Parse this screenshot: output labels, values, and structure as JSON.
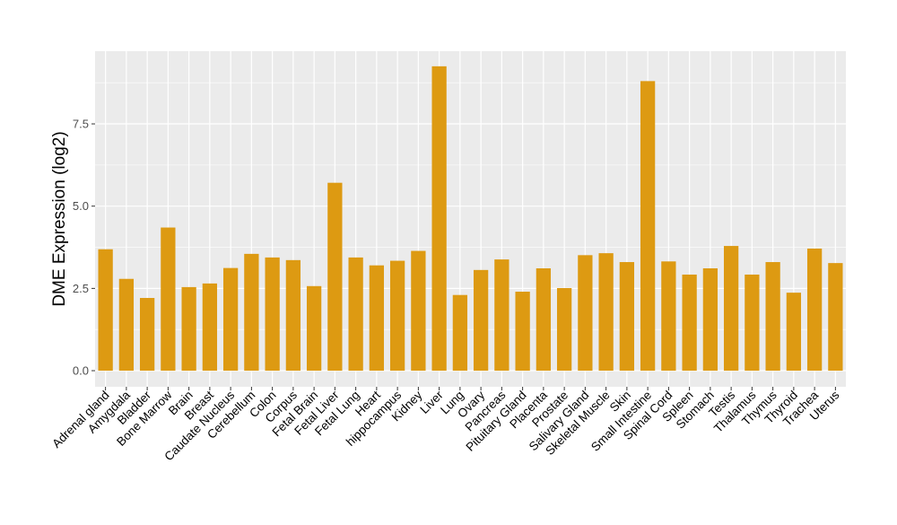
{
  "chart_data": {
    "type": "bar",
    "title": "",
    "xlabel": "",
    "ylabel": "DME Expression (log2)",
    "ylim": [
      -0.49,
      9.71
    ],
    "yticks": [
      0,
      2.5,
      5,
      7.5
    ],
    "ytick_labels": [
      "0.0",
      "2.5",
      "5.0",
      "7.5"
    ],
    "grid": true,
    "bar_color": "#DD9A12",
    "panel_color": "#EBEBEB",
    "categories": [
      "Adrenal gland",
      "Amygdala",
      "Bladder",
      "Bone Marrow",
      "Brain",
      "Breast",
      "Caudate Nucleus",
      "Cerebellum",
      "Colon",
      "Corpus",
      "Fetal Brain",
      "Fetal Liver",
      "Fetal Lung",
      "Heart",
      "hippocampus",
      "Kidney",
      "Liver",
      "Lung",
      "Ovary",
      "Pancreas",
      "Pituitary Gland",
      "Placenta",
      "Prostate",
      "Salivary Gland",
      "Skeletal Muscle",
      "Skin",
      "Small Intestine",
      "Spinal Cord",
      "Spleen",
      "Stomach",
      "Testis",
      "Thalamus",
      "Thymus",
      "Thyroid",
      "Trachea",
      "Uterus"
    ],
    "values": [
      3.69,
      2.79,
      2.21,
      4.35,
      2.54,
      2.65,
      3.12,
      3.55,
      3.44,
      3.36,
      2.57,
      5.71,
      3.44,
      3.2,
      3.34,
      3.64,
      9.25,
      2.3,
      3.06,
      3.38,
      2.4,
      3.11,
      2.51,
      3.51,
      3.57,
      3.3,
      8.8,
      3.32,
      2.92,
      3.11,
      3.79,
      2.92,
      3.3,
      2.37,
      3.71,
      3.27
    ]
  }
}
